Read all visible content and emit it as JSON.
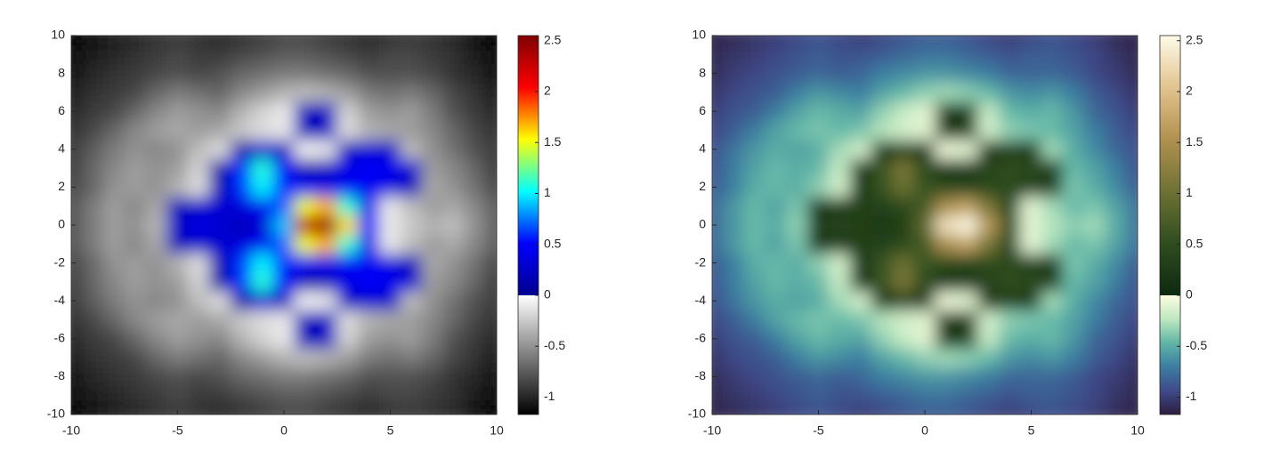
{
  "chart_data": [
    {
      "type": "heatmap",
      "x": [
        -10,
        -9,
        -8,
        -7,
        -6,
        -5,
        -4,
        -3,
        -2,
        -1,
        0,
        1,
        2,
        3,
        4,
        5,
        6,
        7,
        8,
        9,
        10
      ],
      "y": [
        -10,
        -9,
        -8,
        -7,
        -6,
        -5,
        -4,
        -3,
        -2,
        -1,
        0,
        1,
        2,
        3,
        4,
        5,
        6,
        7,
        8,
        9,
        10
      ],
      "z": [
        [
          -1.15,
          -1.1,
          -1.05,
          -1.0,
          -0.95,
          -0.9,
          -0.95,
          -1.0,
          -0.95,
          -0.9,
          -0.85,
          -0.85,
          -0.9,
          -0.95,
          -1.0,
          -0.95,
          -0.9,
          -0.95,
          -1.0,
          -1.1,
          -1.15
        ],
        [
          -1.1,
          -1.05,
          -1.0,
          -0.95,
          -0.9,
          -0.85,
          -0.9,
          -0.9,
          -0.85,
          -0.8,
          -0.75,
          -0.75,
          -0.8,
          -0.85,
          -0.9,
          -0.85,
          -0.85,
          -0.9,
          -0.95,
          -1.05,
          -1.1
        ],
        [
          -1.1,
          -1.0,
          -0.95,
          -0.9,
          -0.85,
          -0.8,
          -0.85,
          -0.8,
          -0.7,
          -0.65,
          -0.6,
          -0.6,
          -0.65,
          -0.7,
          -0.8,
          -0.8,
          -0.8,
          -0.85,
          -0.95,
          -1.0,
          -1.1
        ],
        [
          -1.05,
          -0.95,
          -0.9,
          -0.85,
          -0.7,
          -0.6,
          -0.65,
          -0.7,
          -0.55,
          -0.45,
          -0.35,
          -0.3,
          -0.35,
          -0.45,
          -0.6,
          -0.65,
          -0.6,
          -0.7,
          -0.85,
          -0.95,
          -1.05
        ],
        [
          -1.0,
          -0.9,
          -0.85,
          -0.7,
          -0.55,
          -0.45,
          -0.5,
          -0.55,
          -0.35,
          -0.2,
          -0.1,
          0.2,
          0.25,
          -0.2,
          -0.45,
          -0.5,
          -0.45,
          -0.6,
          -0.8,
          -0.9,
          -1.0
        ],
        [
          -0.95,
          -0.85,
          -0.7,
          -0.55,
          -0.45,
          -0.4,
          -0.45,
          -0.4,
          -0.25,
          -0.15,
          -0.1,
          0.2,
          0.25,
          -0.15,
          -0.35,
          -0.4,
          -0.45,
          -0.55,
          -0.7,
          -0.85,
          -0.95
        ],
        [
          -0.9,
          -0.75,
          -0.6,
          -0.5,
          -0.55,
          -0.5,
          -0.3,
          -0.15,
          0.1,
          0.3,
          0.2,
          -0.05,
          -0.1,
          0.2,
          0.3,
          0.25,
          -0.3,
          -0.5,
          -0.65,
          -0.8,
          -0.9
        ],
        [
          -0.9,
          -0.7,
          -0.55,
          -0.45,
          -0.5,
          -0.45,
          -0.2,
          0.1,
          0.6,
          1.1,
          0.5,
          0.15,
          0.2,
          0.4,
          0.5,
          0.45,
          0.3,
          -0.45,
          -0.55,
          -0.7,
          -0.9
        ],
        [
          -0.85,
          -0.7,
          -0.5,
          -0.45,
          -0.5,
          -0.35,
          -0.15,
          0.15,
          0.6,
          1.0,
          0.6,
          0.45,
          0.4,
          0.45,
          0.45,
          0.35,
          0.2,
          -0.4,
          -0.5,
          -0.65,
          -0.85
        ],
        [
          -0.8,
          -0.6,
          -0.45,
          -0.55,
          -0.4,
          0.2,
          0.25,
          0.3,
          0.35,
          0.45,
          0.7,
          1.5,
          1.7,
          1.1,
          0.4,
          -0.1,
          -0.3,
          -0.45,
          -0.4,
          -0.55,
          -0.75
        ],
        [
          -0.8,
          -0.6,
          -0.45,
          -0.5,
          -0.35,
          0.25,
          0.4,
          0.3,
          0.2,
          0.3,
          0.9,
          2.3,
          2.5,
          1.6,
          0.5,
          -0.1,
          -0.25,
          -0.35,
          -0.3,
          -0.5,
          -0.75
        ],
        [
          -0.8,
          -0.6,
          -0.45,
          -0.55,
          -0.4,
          0.2,
          0.25,
          0.3,
          0.35,
          0.45,
          0.7,
          1.5,
          1.7,
          1.1,
          0.4,
          -0.1,
          -0.3,
          -0.45,
          -0.4,
          -0.55,
          -0.75
        ],
        [
          -0.85,
          -0.7,
          -0.5,
          -0.45,
          -0.5,
          -0.35,
          -0.15,
          0.15,
          0.6,
          1.0,
          0.6,
          0.45,
          0.4,
          0.45,
          0.45,
          0.35,
          0.2,
          -0.4,
          -0.5,
          -0.65,
          -0.85
        ],
        [
          -0.9,
          -0.7,
          -0.55,
          -0.45,
          -0.5,
          -0.45,
          -0.2,
          0.1,
          0.6,
          1.1,
          0.5,
          0.15,
          0.2,
          0.4,
          0.5,
          0.45,
          0.3,
          -0.45,
          -0.55,
          -0.7,
          -0.9
        ],
        [
          -0.9,
          -0.75,
          -0.6,
          -0.5,
          -0.55,
          -0.5,
          -0.3,
          -0.15,
          0.1,
          0.3,
          0.2,
          -0.05,
          -0.1,
          0.2,
          0.3,
          0.25,
          -0.3,
          -0.5,
          -0.65,
          -0.8,
          -0.9
        ],
        [
          -0.95,
          -0.85,
          -0.7,
          -0.55,
          -0.45,
          -0.4,
          -0.45,
          -0.4,
          -0.25,
          -0.15,
          -0.1,
          0.2,
          0.25,
          -0.15,
          -0.35,
          -0.4,
          -0.45,
          -0.55,
          -0.7,
          -0.85,
          -0.95
        ],
        [
          -1.0,
          -0.9,
          -0.85,
          -0.7,
          -0.55,
          -0.45,
          -0.5,
          -0.55,
          -0.35,
          -0.2,
          -0.1,
          0.2,
          0.25,
          -0.2,
          -0.45,
          -0.5,
          -0.45,
          -0.6,
          -0.8,
          -0.9,
          -1.0
        ],
        [
          -1.05,
          -0.95,
          -0.9,
          -0.85,
          -0.7,
          -0.6,
          -0.65,
          -0.7,
          -0.55,
          -0.45,
          -0.35,
          -0.3,
          -0.35,
          -0.45,
          -0.6,
          -0.65,
          -0.6,
          -0.7,
          -0.85,
          -0.95,
          -1.05
        ],
        [
          -1.1,
          -1.0,
          -0.95,
          -0.9,
          -0.85,
          -0.8,
          -0.85,
          -0.8,
          -0.7,
          -0.65,
          -0.6,
          -0.6,
          -0.65,
          -0.7,
          -0.8,
          -0.8,
          -0.8,
          -0.85,
          -0.95,
          -1.0,
          -1.1
        ],
        [
          -1.1,
          -1.05,
          -1.0,
          -0.95,
          -0.9,
          -0.85,
          -0.9,
          -0.9,
          -0.85,
          -0.8,
          -0.75,
          -0.75,
          -0.8,
          -0.85,
          -0.9,
          -0.85,
          -0.85,
          -0.9,
          -0.95,
          -1.05,
          -1.1
        ],
        [
          -1.15,
          -1.1,
          -1.05,
          -1.0,
          -0.95,
          -0.9,
          -0.95,
          -1.0,
          -0.95,
          -0.9,
          -0.85,
          -0.85,
          -0.9,
          -0.95,
          -1.0,
          -0.95,
          -0.9,
          -0.95,
          -1.0,
          -1.1,
          -1.15
        ]
      ],
      "xlim": [
        -10,
        10
      ],
      "ylim": [
        -10,
        10
      ],
      "xticks": [
        -10,
        -5,
        0,
        5,
        10
      ],
      "yticks": [
        -10,
        -8,
        -6,
        -4,
        -2,
        0,
        2,
        4,
        6,
        8,
        10
      ],
      "clim": [
        -1.17,
        2.55
      ],
      "cticks": [
        -1,
        -0.5,
        0,
        0.5,
        1,
        1.5,
        2,
        2.5
      ],
      "colormap": {
        "negative": [
          "#000000",
          "#ffffff"
        ],
        "positive": [
          "#00008f",
          "#0000ff",
          "#00ffff",
          "#ffff00",
          "#ff0000",
          "#800000"
        ]
      }
    },
    {
      "type": "heatmap",
      "x": [
        -10,
        -9,
        -8,
        -7,
        -6,
        -5,
        -4,
        -3,
        -2,
        -1,
        0,
        1,
        2,
        3,
        4,
        5,
        6,
        7,
        8,
        9,
        10
      ],
      "y": [
        -10,
        -9,
        -8,
        -7,
        -6,
        -5,
        -4,
        -3,
        -2,
        -1,
        0,
        1,
        2,
        3,
        4,
        5,
        6,
        7,
        8,
        9,
        10
      ],
      "z": [
        [
          -1.15,
          -1.1,
          -1.05,
          -1.0,
          -0.95,
          -0.9,
          -0.95,
          -1.0,
          -0.95,
          -0.9,
          -0.85,
          -0.85,
          -0.9,
          -0.95,
          -1.0,
          -0.95,
          -0.9,
          -0.95,
          -1.0,
          -1.1,
          -1.15
        ],
        [
          -1.1,
          -1.05,
          -1.0,
          -0.95,
          -0.9,
          -0.85,
          -0.9,
          -0.9,
          -0.85,
          -0.8,
          -0.75,
          -0.75,
          -0.8,
          -0.85,
          -0.9,
          -0.85,
          -0.85,
          -0.9,
          -0.95,
          -1.05,
          -1.1
        ],
        [
          -1.1,
          -1.0,
          -0.95,
          -0.9,
          -0.85,
          -0.8,
          -0.85,
          -0.8,
          -0.7,
          -0.65,
          -0.6,
          -0.6,
          -0.65,
          -0.7,
          -0.8,
          -0.8,
          -0.8,
          -0.85,
          -0.95,
          -1.0,
          -1.1
        ],
        [
          -1.05,
          -0.95,
          -0.9,
          -0.85,
          -0.7,
          -0.6,
          -0.65,
          -0.7,
          -0.55,
          -0.45,
          -0.35,
          -0.3,
          -0.35,
          -0.45,
          -0.6,
          -0.65,
          -0.6,
          -0.7,
          -0.85,
          -0.95,
          -1.05
        ],
        [
          -1.0,
          -0.9,
          -0.85,
          -0.7,
          -0.55,
          -0.45,
          -0.5,
          -0.55,
          -0.35,
          -0.2,
          -0.1,
          0.2,
          0.25,
          -0.2,
          -0.45,
          -0.5,
          -0.45,
          -0.6,
          -0.8,
          -0.9,
          -1.0
        ],
        [
          -0.95,
          -0.85,
          -0.7,
          -0.55,
          -0.45,
          -0.4,
          -0.45,
          -0.4,
          -0.25,
          -0.15,
          -0.1,
          0.2,
          0.25,
          -0.15,
          -0.35,
          -0.4,
          -0.45,
          -0.55,
          -0.7,
          -0.85,
          -0.95
        ],
        [
          -0.9,
          -0.75,
          -0.6,
          -0.5,
          -0.55,
          -0.5,
          -0.3,
          -0.15,
          0.1,
          0.3,
          0.2,
          -0.05,
          -0.1,
          0.2,
          0.3,
          0.25,
          -0.3,
          -0.5,
          -0.65,
          -0.8,
          -0.9
        ],
        [
          -0.9,
          -0.7,
          -0.55,
          -0.45,
          -0.5,
          -0.45,
          -0.2,
          0.1,
          0.6,
          1.1,
          0.5,
          0.15,
          0.2,
          0.4,
          0.5,
          0.45,
          0.3,
          -0.45,
          -0.55,
          -0.7,
          -0.9
        ],
        [
          -0.85,
          -0.7,
          -0.5,
          -0.45,
          -0.5,
          -0.35,
          -0.15,
          0.15,
          0.6,
          1.0,
          0.6,
          0.45,
          0.4,
          0.45,
          0.45,
          0.35,
          0.2,
          -0.4,
          -0.5,
          -0.65,
          -0.85
        ],
        [
          -0.8,
          -0.6,
          -0.45,
          -0.55,
          -0.4,
          0.2,
          0.25,
          0.3,
          0.35,
          0.45,
          0.7,
          1.5,
          1.7,
          1.1,
          0.4,
          -0.1,
          -0.3,
          -0.45,
          -0.4,
          -0.55,
          -0.75
        ],
        [
          -0.8,
          -0.6,
          -0.45,
          -0.5,
          -0.35,
          0.25,
          0.4,
          0.3,
          0.2,
          0.3,
          0.9,
          2.3,
          2.5,
          1.6,
          0.5,
          -0.1,
          -0.25,
          -0.35,
          -0.3,
          -0.5,
          -0.75
        ],
        [
          -0.8,
          -0.6,
          -0.45,
          -0.55,
          -0.4,
          0.2,
          0.25,
          0.3,
          0.35,
          0.45,
          0.7,
          1.5,
          1.7,
          1.1,
          0.4,
          -0.1,
          -0.3,
          -0.45,
          -0.4,
          -0.55,
          -0.75
        ],
        [
          -0.85,
          -0.7,
          -0.5,
          -0.45,
          -0.5,
          -0.35,
          -0.15,
          0.15,
          0.6,
          1.0,
          0.6,
          0.45,
          0.4,
          0.45,
          0.45,
          0.35,
          0.2,
          -0.4,
          -0.5,
          -0.65,
          -0.85
        ],
        [
          -0.9,
          -0.7,
          -0.55,
          -0.45,
          -0.5,
          -0.45,
          -0.2,
          0.1,
          0.6,
          1.1,
          0.5,
          0.15,
          0.2,
          0.4,
          0.5,
          0.45,
          0.3,
          -0.45,
          -0.55,
          -0.7,
          -0.9
        ],
        [
          -0.9,
          -0.75,
          -0.6,
          -0.5,
          -0.55,
          -0.5,
          -0.3,
          -0.15,
          0.1,
          0.3,
          0.2,
          -0.05,
          -0.1,
          0.2,
          0.3,
          0.25,
          -0.3,
          -0.5,
          -0.65,
          -0.8,
          -0.9
        ],
        [
          -0.95,
          -0.85,
          -0.7,
          -0.55,
          -0.45,
          -0.4,
          -0.45,
          -0.4,
          -0.25,
          -0.15,
          -0.1,
          0.2,
          0.25,
          -0.15,
          -0.35,
          -0.4,
          -0.45,
          -0.55,
          -0.7,
          -0.85,
          -0.95
        ],
        [
          -1.0,
          -0.9,
          -0.85,
          -0.7,
          -0.55,
          -0.45,
          -0.5,
          -0.55,
          -0.35,
          -0.2,
          -0.1,
          0.2,
          0.25,
          -0.2,
          -0.45,
          -0.5,
          -0.45,
          -0.6,
          -0.8,
          -0.9,
          -1.0
        ],
        [
          -1.05,
          -0.95,
          -0.9,
          -0.85,
          -0.7,
          -0.6,
          -0.65,
          -0.7,
          -0.55,
          -0.45,
          -0.35,
          -0.3,
          -0.35,
          -0.45,
          -0.6,
          -0.65,
          -0.6,
          -0.7,
          -0.85,
          -0.95,
          -1.05
        ],
        [
          -1.1,
          -1.0,
          -0.95,
          -0.9,
          -0.85,
          -0.8,
          -0.85,
          -0.8,
          -0.7,
          -0.65,
          -0.6,
          -0.6,
          -0.65,
          -0.7,
          -0.8,
          -0.8,
          -0.8,
          -0.85,
          -0.95,
          -1.0,
          -1.1
        ],
        [
          -1.1,
          -1.05,
          -1.0,
          -0.95,
          -0.9,
          -0.85,
          -0.9,
          -0.9,
          -0.85,
          -0.8,
          -0.75,
          -0.75,
          -0.8,
          -0.85,
          -0.9,
          -0.85,
          -0.85,
          -0.9,
          -0.95,
          -1.05,
          -1.1
        ],
        [
          -1.15,
          -1.1,
          -1.05,
          -1.0,
          -0.95,
          -0.9,
          -0.95,
          -1.0,
          -0.95,
          -0.9,
          -0.85,
          -0.85,
          -0.9,
          -0.95,
          -1.0,
          -0.95,
          -0.9,
          -0.95,
          -1.0,
          -1.1,
          -1.15
        ]
      ],
      "xlim": [
        -10,
        10
      ],
      "ylim": [
        -10,
        10
      ],
      "xticks": [
        -10,
        -5,
        0,
        5,
        10
      ],
      "yticks": [
        -10,
        -8,
        -6,
        -4,
        -2,
        0,
        2,
        4,
        6,
        8,
        10
      ],
      "clim": [
        -1.17,
        2.55
      ],
      "cticks": [
        -1,
        -0.5,
        0,
        0.5,
        1,
        1.5,
        2,
        2.5
      ],
      "colormap": {
        "negative": [
          "#2d1e3e",
          "#3f4a8a",
          "#3b7ea1",
          "#5fb5a5",
          "#bde8c0",
          "#fdfde0"
        ],
        "positive": [
          "#0d2a10",
          "#2e4d1e",
          "#6e7233",
          "#b0914f",
          "#e2c48e",
          "#fdfbe8"
        ]
      }
    }
  ]
}
